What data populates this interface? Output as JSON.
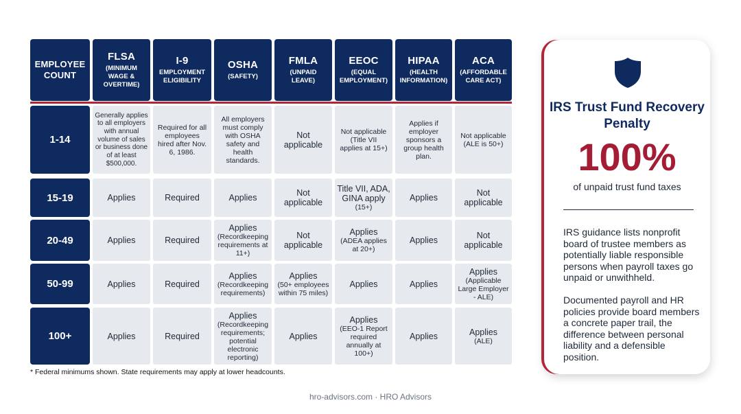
{
  "headers": [
    {
      "title": "EMPLOYEE COUNT",
      "subtitle": ""
    },
    {
      "title": "FLSA",
      "subtitle": "(MINIMUM WAGE & OVERTIME)"
    },
    {
      "title": "I-9",
      "subtitle": "EMPLOYMENT ELIGIBILITY"
    },
    {
      "title": "OSHA",
      "subtitle": "(SAFETY)"
    },
    {
      "title": "FMLA",
      "subtitle": "(UNPAID LEAVE)"
    },
    {
      "title": "EEOC",
      "subtitle": "(EQUAL EMPLOYMENT)"
    },
    {
      "title": "HIPAA",
      "subtitle": "(HEALTH INFORMATION)"
    },
    {
      "title": "ACA",
      "subtitle": "(AFFORDABLE CARE ACT)"
    }
  ],
  "rows": [
    {
      "label": "1-14",
      "cells": [
        {
          "main": "",
          "note": "Generally applies to all employers with annual volume of sales or business done of at least $500,000."
        },
        {
          "main": "Required for all employees hired after Nov. 6, 1986.",
          "note": ""
        },
        {
          "main": "All employers must comply with OSHA safety and health standards.",
          "note": ""
        },
        {
          "main": "Not applicable",
          "note": ""
        },
        {
          "main": "Not applicable",
          "note": "(Title VII applies at 15+)"
        },
        {
          "main": "Applies if employer sponsors a group health plan.",
          "note": ""
        },
        {
          "main": "Not applicable",
          "note": "(ALE is 50+)"
        }
      ]
    },
    {
      "label": "15-19",
      "cells": [
        {
          "main": "Applies",
          "note": ""
        },
        {
          "main": "Required",
          "note": ""
        },
        {
          "main": "Applies",
          "note": ""
        },
        {
          "main": "Not applicable",
          "note": ""
        },
        {
          "main": "Title VII, ADA, GINA apply",
          "note": "(15+)"
        },
        {
          "main": "Applies",
          "note": ""
        },
        {
          "main": "Not applicable",
          "note": ""
        }
      ]
    },
    {
      "label": "20-49",
      "cells": [
        {
          "main": "Applies",
          "note": ""
        },
        {
          "main": "Required",
          "note": ""
        },
        {
          "main": "Applies",
          "note": "(Recordkeeping requirements at 11+)"
        },
        {
          "main": "Not applicable",
          "note": ""
        },
        {
          "main": "Applies",
          "note": "(ADEA applies at 20+)"
        },
        {
          "main": "Applies",
          "note": ""
        },
        {
          "main": "Not applicable",
          "note": ""
        }
      ]
    },
    {
      "label": "50-99",
      "cells": [
        {
          "main": "Applies",
          "note": ""
        },
        {
          "main": "Required",
          "note": ""
        },
        {
          "main": "Applies",
          "note": "(Recordkeeping requirements)"
        },
        {
          "main": "Applies",
          "note": "(50+ employees within 75 miles)"
        },
        {
          "main": "Applies",
          "note": ""
        },
        {
          "main": "Applies",
          "note": ""
        },
        {
          "main": "Applies",
          "note": "(Applicable Large Employer - ALE)"
        }
      ]
    },
    {
      "label": "100+",
      "cells": [
        {
          "main": "Applies",
          "note": ""
        },
        {
          "main": "Required",
          "note": ""
        },
        {
          "main": "Applies",
          "note": "(Recordkeeping requirements; potential electronic reporting)"
        },
        {
          "main": "Applies",
          "note": ""
        },
        {
          "main": "Applies",
          "note": "(EEO-1 Report required annually at 100+)"
        },
        {
          "main": "Applies",
          "note": ""
        },
        {
          "main": "Applies",
          "note": "(ALE)"
        }
      ]
    }
  ],
  "footnote": "* Federal minimums shown. State requirements may apply at lower headcounts.",
  "source": "hro-advisors.com · HRO Advisors",
  "card": {
    "icon": "shield-icon",
    "title": "IRS Trust Fund Recovery Penalty",
    "big": "100%",
    "sub": "of unpaid trust fund taxes",
    "p1": "IRS guidance lists nonprofit board of trustee members as potentially liable responsible persons when payroll taxes go unpaid or unwithheld.",
    "p2": "Documented payroll and HR policies provide board members a concrete paper trail, the difference between personal liability and a defensible position."
  },
  "colors": {
    "navy": "#0f2a5f",
    "accent_red": "#a31d35",
    "cell_gray": "#e6e9ee"
  }
}
